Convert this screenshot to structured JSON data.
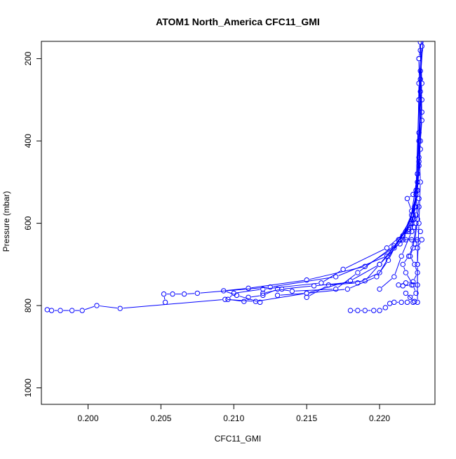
{
  "chart_data": {
    "type": "line",
    "title": "ATOM1 North_America CFC11_GMI",
    "xlabel": "CFC11_GMI",
    "ylabel": "Pressure (mbar)",
    "xlim": [
      0.1968,
      0.2238
    ],
    "ylim": [
      1040,
      158
    ],
    "y_reversed": true,
    "x_ticks": [
      "0.200",
      "0.205",
      "0.210",
      "0.215",
      "0.220"
    ],
    "x_tick_values": [
      0.2,
      0.205,
      0.21,
      0.215,
      0.22
    ],
    "y_ticks": [
      "200",
      "400",
      "600",
      "800",
      "1000"
    ],
    "y_tick_values": [
      200,
      400,
      600,
      800,
      1000
    ],
    "grid": false,
    "legend": "none",
    "marker": "open-circle",
    "color": "#0000ff",
    "series": [
      {
        "points": [
          [
            0.2229,
            150
          ],
          [
            0.2227,
            200
          ],
          [
            0.2229,
            300
          ],
          [
            0.2227,
            400
          ],
          [
            0.2228,
            500
          ],
          [
            0.2227,
            600
          ],
          [
            0.2226,
            700
          ],
          [
            0.2226,
            792
          ],
          [
            0.2223,
            792
          ],
          [
            0.2219,
            792
          ],
          [
            0.2215,
            792
          ],
          [
            0.221,
            792
          ],
          [
            0.2207,
            795
          ],
          [
            0.2204,
            805
          ],
          [
            0.22,
            812
          ],
          [
            0.2196,
            812
          ],
          [
            0.219,
            812
          ],
          [
            0.2185,
            812
          ],
          [
            0.218,
            812
          ]
        ]
      },
      {
        "points": [
          [
            0.223,
            150
          ],
          [
            0.2228,
            250
          ],
          [
            0.2229,
            350
          ],
          [
            0.2227,
            450
          ],
          [
            0.2225,
            530
          ],
          [
            0.2222,
            580
          ],
          [
            0.2216,
            640
          ],
          [
            0.22,
            700
          ],
          [
            0.218,
            740
          ],
          [
            0.215,
            770
          ],
          [
            0.2115,
            790
          ],
          [
            0.2094,
            785
          ],
          [
            0.2022,
            807
          ],
          [
            0.2006,
            800
          ],
          [
            0.1996,
            812
          ],
          [
            0.1989,
            812
          ],
          [
            0.1981,
            812
          ],
          [
            0.1975,
            812
          ],
          [
            0.1972,
            810
          ]
        ]
      },
      {
        "points": [
          [
            0.2228,
            160
          ],
          [
            0.2229,
            260
          ],
          [
            0.2227,
            380
          ],
          [
            0.2226,
            480
          ],
          [
            0.2224,
            560
          ],
          [
            0.2218,
            620
          ],
          [
            0.2205,
            680
          ],
          [
            0.217,
            730
          ],
          [
            0.2125,
            755
          ],
          [
            0.2075,
            770
          ],
          [
            0.2066,
            772
          ],
          [
            0.2058,
            772
          ],
          [
            0.2052,
            772
          ],
          [
            0.2053,
            792
          ]
        ]
      },
      {
        "points": [
          [
            0.2229,
            170
          ],
          [
            0.2227,
            300
          ],
          [
            0.2228,
            420
          ],
          [
            0.2226,
            520
          ],
          [
            0.2223,
            590
          ],
          [
            0.2214,
            650
          ],
          [
            0.219,
            705
          ],
          [
            0.215,
            738
          ],
          [
            0.211,
            758
          ],
          [
            0.2093,
            764
          ],
          [
            0.2102,
            775
          ],
          [
            0.2118,
            792
          ]
        ]
      },
      {
        "points": [
          [
            0.2228,
            180
          ],
          [
            0.2229,
            330
          ],
          [
            0.2227,
            460
          ],
          [
            0.2225,
            560
          ],
          [
            0.222,
            615
          ],
          [
            0.2205,
            660
          ],
          [
            0.2175,
            712
          ],
          [
            0.216,
            745
          ],
          [
            0.212,
            760
          ],
          [
            0.21,
            770
          ],
          [
            0.2096,
            785
          ],
          [
            0.2107,
            790
          ]
        ]
      },
      {
        "points": [
          [
            0.2227,
            200
          ],
          [
            0.2228,
            400
          ],
          [
            0.2226,
            520
          ],
          [
            0.2222,
            600
          ],
          [
            0.221,
            655
          ],
          [
            0.2185,
            720
          ],
          [
            0.217,
            760
          ],
          [
            0.214,
            765
          ],
          [
            0.213,
            760
          ],
          [
            0.212,
            775
          ],
          [
            0.211,
            780
          ]
        ]
      },
      {
        "points": [
          [
            0.2228,
            230
          ],
          [
            0.2227,
            440
          ],
          [
            0.2224,
            560
          ],
          [
            0.2216,
            630
          ],
          [
            0.22,
            700
          ],
          [
            0.219,
            740
          ],
          [
            0.2155,
            752
          ],
          [
            0.2133,
            760
          ],
          [
            0.212,
            770
          ]
        ]
      },
      {
        "points": [
          [
            0.2227,
            260
          ],
          [
            0.2226,
            480
          ],
          [
            0.2221,
            600
          ],
          [
            0.221,
            660
          ],
          [
            0.22,
            720
          ],
          [
            0.2185,
            745
          ],
          [
            0.2165,
            750
          ],
          [
            0.215,
            780
          ]
        ]
      },
      {
        "points": [
          [
            0.2228,
            280
          ],
          [
            0.2226,
            500
          ],
          [
            0.2223,
            580
          ],
          [
            0.2213,
            640
          ],
          [
            0.2206,
            690
          ],
          [
            0.2198,
            730
          ],
          [
            0.2178,
            760
          ],
          [
            0.215,
            770
          ],
          [
            0.213,
            775
          ]
        ]
      },
      {
        "points": [
          [
            0.2227,
            300
          ],
          [
            0.2225,
            520
          ],
          [
            0.2222,
            620
          ],
          [
            0.2215,
            680
          ],
          [
            0.221,
            730
          ],
          [
            0.22,
            760
          ]
        ]
      },
      {
        "points": [
          [
            0.2226,
            640
          ],
          [
            0.2218,
            640
          ],
          [
            0.2214,
            640
          ],
          [
            0.2222,
            640
          ],
          [
            0.2229,
            640
          ],
          [
            0.2226,
            660
          ],
          [
            0.2226,
            700
          ],
          [
            0.2226,
            750
          ],
          [
            0.2222,
            750
          ],
          [
            0.2216,
            752
          ],
          [
            0.2213,
            750
          ],
          [
            0.2218,
            745
          ],
          [
            0.2223,
            742
          ],
          [
            0.2226,
            720
          ],
          [
            0.2224,
            700
          ],
          [
            0.2221,
            680
          ],
          [
            0.2223,
            660
          ],
          [
            0.2225,
            600
          ],
          [
            0.2227,
            560
          ]
        ]
      },
      {
        "points": [
          [
            0.2228,
            620
          ],
          [
            0.2224,
            610
          ],
          [
            0.222,
            620
          ],
          [
            0.2225,
            580
          ],
          [
            0.2227,
            540
          ],
          [
            0.2223,
            530
          ],
          [
            0.2219,
            540
          ],
          [
            0.2222,
            570
          ],
          [
            0.2226,
            590
          ],
          [
            0.2224,
            650
          ],
          [
            0.222,
            680
          ],
          [
            0.2216,
            700
          ],
          [
            0.2218,
            720
          ],
          [
            0.2223,
            750
          ],
          [
            0.2225,
            770
          ],
          [
            0.2221,
            780
          ],
          [
            0.2218,
            770
          ],
          [
            0.2224,
            790
          ]
        ]
      }
    ]
  }
}
